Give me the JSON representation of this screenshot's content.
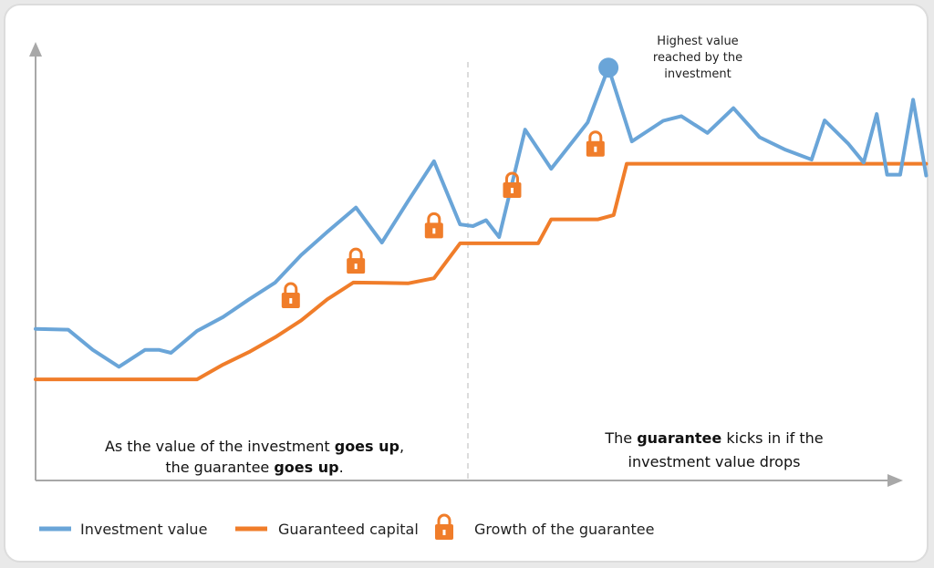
{
  "chart_data": {
    "type": "line",
    "title": "",
    "xlabel": "",
    "ylabel": "",
    "grid": false,
    "legend_position": "bottom",
    "xlim": [
      0,
      33
    ],
    "ylim": [
      0,
      100
    ],
    "series": [
      {
        "name": "Investment value",
        "color": "#6aa5d8",
        "points": [
          [
            0,
            36
          ],
          [
            1.25,
            35.8
          ],
          [
            2.2,
            31
          ],
          [
            3.2,
            27
          ],
          [
            4.2,
            31
          ],
          [
            4.75,
            31
          ],
          [
            5.2,
            30.3
          ],
          [
            6.2,
            35.5
          ],
          [
            7.2,
            38.8
          ],
          [
            8.2,
            43
          ],
          [
            9.2,
            47
          ],
          [
            10.2,
            53.5
          ],
          [
            11.2,
            59
          ],
          [
            12.3,
            64.8
          ],
          [
            13.3,
            56.5
          ],
          [
            14.3,
            66.3
          ],
          [
            15.3,
            75.8
          ],
          [
            16.3,
            60.8
          ],
          [
            16.8,
            60.4
          ],
          [
            17.3,
            61.8
          ],
          [
            17.8,
            57.8
          ],
          [
            18.8,
            83.3
          ],
          [
            19.8,
            74
          ],
          [
            21.2,
            85
          ],
          [
            22.0,
            98
          ],
          [
            22.9,
            80.5
          ],
          [
            24.1,
            85.4
          ],
          [
            24.8,
            86.5
          ],
          [
            25.8,
            82.5
          ],
          [
            26.8,
            88.4
          ],
          [
            27.8,
            81.5
          ],
          [
            28.8,
            78.5
          ],
          [
            29.8,
            76.2
          ],
          [
            30.3,
            85.5
          ],
          [
            31.2,
            80
          ],
          [
            31.8,
            75.5
          ],
          [
            32.3,
            87
          ],
          [
            32.7,
            72.6
          ],
          [
            33.2,
            72.6
          ],
          [
            33.7,
            90.4
          ],
          [
            34.2,
            72.4
          ]
        ]
      },
      {
        "name": "Guaranteed capital",
        "color": "#f07d2a",
        "points": [
          [
            0,
            24
          ],
          [
            6.2,
            24
          ],
          [
            7.2,
            27.5
          ],
          [
            8.2,
            30.5
          ],
          [
            9.2,
            34
          ],
          [
            10.2,
            38
          ],
          [
            11.2,
            43
          ],
          [
            12.2,
            47
          ],
          [
            13.3,
            46.9
          ],
          [
            14.3,
            46.8
          ],
          [
            15.3,
            48
          ],
          [
            16.3,
            56.3
          ],
          [
            19.3,
            56.3
          ],
          [
            19.8,
            62
          ],
          [
            21.6,
            62
          ],
          [
            22.2,
            63
          ],
          [
            22.7,
            75.2
          ],
          [
            34.2,
            75.2
          ]
        ]
      }
    ],
    "annotations": [
      {
        "text": "Highest value reached by the investment",
        "x": 22.0,
        "y": 98
      },
      {
        "text": "As the value of the investment goes up, the guarantee goes up."
      },
      {
        "text": "The guarantee kicks in if the investment value drops"
      }
    ],
    "markers": {
      "label": "Growth of the guarantee",
      "color": "#f07d2a",
      "positions": [
        [
          9.8,
          43.5
        ],
        [
          12.3,
          51.7
        ],
        [
          15.3,
          60.1
        ],
        [
          18.3,
          69.7
        ],
        [
          21.5,
          79.5
        ]
      ]
    }
  },
  "annotation": {
    "peak_line1": "Highest value",
    "peak_line2": "reached by the",
    "peak_line3": "investment",
    "left_pre": "As the value of the investment ",
    "left_bold1": "goes up",
    "left_post1": ",",
    "left_pre2": "the guarantee ",
    "left_bold2": "goes up",
    "left_post2": ".",
    "right_pre": "The ",
    "right_bold": "guarantee",
    "right_post": " kicks in if the",
    "right_line2": "investment value drops"
  },
  "legend": {
    "investment": "Investment value",
    "guaranteed": "Guaranteed capital",
    "growth": "Growth of the guarantee"
  },
  "colors": {
    "investment": "#6aa5d8",
    "guaranteed": "#f07d2a",
    "axis": "#a8a8a8"
  }
}
